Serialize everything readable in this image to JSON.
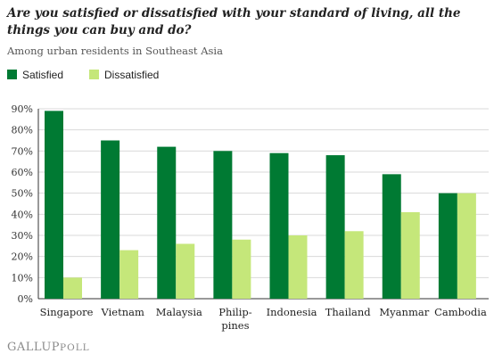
{
  "title": "Are you satisfied or dissatisfied with your standard of living, all the things you can buy and do?",
  "subtitle": "Among urban residents in Southeast Asia",
  "footer": {
    "brand": "GALLUP",
    "product": "POLL"
  },
  "colors": {
    "satisfied": "#007a33",
    "dissatisfied": "#c5e77a",
    "grid": "#d9d9d9",
    "axis": "#333333"
  },
  "chart_data": {
    "type": "bar",
    "title": "Are you satisfied or dissatisfied with your standard of living, all the things you can buy and do?",
    "subtitle": "Among urban residents in Southeast Asia",
    "categories": [
      [
        "Singapore"
      ],
      [
        "Vietnam"
      ],
      [
        "Malaysia"
      ],
      [
        "Philip-",
        "pines"
      ],
      [
        "Indonesia"
      ],
      [
        "Thailand"
      ],
      [
        "Myanmar"
      ],
      [
        "Cambodia"
      ]
    ],
    "series": [
      {
        "name": "Satisfied",
        "color": "#007a33",
        "values": [
          89,
          75,
          72,
          70,
          69,
          68,
          59,
          50
        ]
      },
      {
        "name": "Dissatisfied",
        "color": "#c5e77a",
        "values": [
          10,
          23,
          26,
          28,
          30,
          32,
          41,
          50
        ]
      }
    ],
    "ylim": [
      0,
      90
    ],
    "yticks": [
      0,
      10,
      20,
      30,
      40,
      50,
      60,
      70,
      80,
      90
    ],
    "ytick_labels": [
      "0%",
      "10%",
      "20%",
      "30%",
      "40%",
      "50%",
      "60%",
      "70%",
      "80%",
      "90%"
    ],
    "grid": true,
    "legend": "top-left",
    "xlabel": "",
    "ylabel": ""
  }
}
